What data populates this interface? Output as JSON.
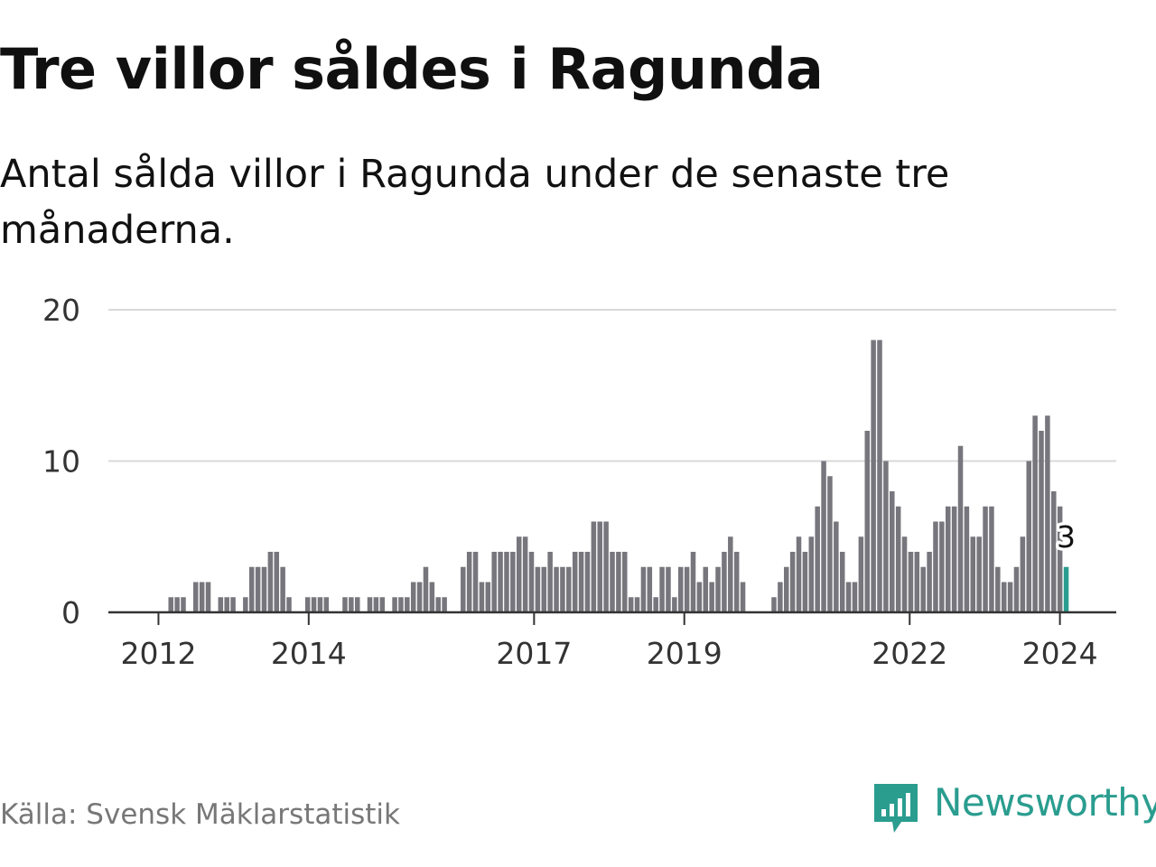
{
  "title": "Tre villor såldes i Ragunda",
  "subtitle": "Antal sålda villor i Ragunda under de senaste tre månaderna.",
  "source": "Källa: Svensk Mäklarstatistik",
  "brand": {
    "name": "Newsworthy",
    "color": "#2a9d8f"
  },
  "colors": {
    "bar": "#77767d",
    "highlight": "#2a9d8f",
    "grid": "#d9d9d9",
    "axis": "#333333"
  },
  "chart_data": {
    "type": "bar",
    "title": "Tre villor såldes i Ragunda",
    "xlabel": "",
    "ylabel": "",
    "ylim": [
      0,
      20
    ],
    "y_ticks": [
      "0",
      "10",
      "20"
    ],
    "x_start": 2012.0,
    "x_end": 2024.0833,
    "x_range": [
      2011.3333,
      2024.75
    ],
    "x_ticks": [
      {
        "value": 2012,
        "label": "2012"
      },
      {
        "value": 2014,
        "label": "2014"
      },
      {
        "value": 2017,
        "label": "2017"
      },
      {
        "value": 2019,
        "label": "2019"
      },
      {
        "value": 2022,
        "label": "2022"
      },
      {
        "value": 2024,
        "label": "2024"
      }
    ],
    "values": [
      0,
      0,
      1,
      1,
      1,
      0,
      2,
      2,
      2,
      0,
      1,
      1,
      1,
      0,
      1,
      3,
      3,
      3,
      4,
      4,
      3,
      1,
      0,
      0,
      1,
      1,
      1,
      1,
      0,
      0,
      1,
      1,
      1,
      0,
      1,
      1,
      1,
      0,
      1,
      1,
      1,
      2,
      2,
      3,
      2,
      1,
      1,
      0,
      0,
      3,
      4,
      4,
      2,
      2,
      4,
      4,
      4,
      4,
      5,
      5,
      4,
      3,
      3,
      4,
      3,
      3,
      3,
      4,
      4,
      4,
      6,
      6,
      6,
      4,
      4,
      4,
      1,
      1,
      3,
      3,
      1,
      3,
      3,
      1,
      3,
      3,
      4,
      2,
      3,
      2,
      3,
      4,
      5,
      4,
      2,
      0,
      0,
      0,
      0,
      1,
      2,
      3,
      4,
      5,
      4,
      5,
      7,
      10,
      9,
      6,
      4,
      2,
      2,
      5,
      12,
      18,
      18,
      10,
      8,
      7,
      5,
      4,
      4,
      3,
      4,
      6,
      6,
      7,
      7,
      11,
      7,
      5,
      5,
      7,
      7,
      3,
      2,
      2,
      3,
      5,
      10,
      13,
      12,
      13,
      8,
      7,
      3
    ],
    "highlight_last": true,
    "annotation": "3"
  }
}
